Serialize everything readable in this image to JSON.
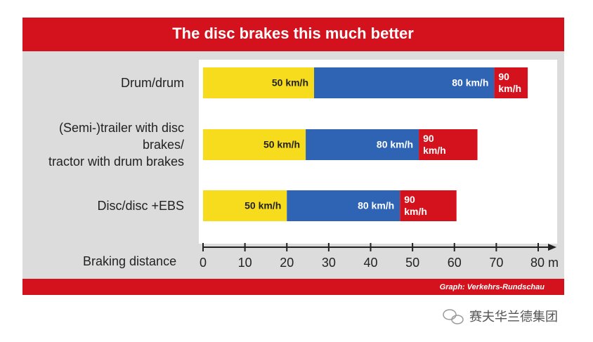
{
  "chart_data": {
    "type": "stacked-bar-horizontal",
    "title": "The disc brakes this much better",
    "categories": [
      "Drum/drum",
      "(Semi-)trailer with disc\nbrakes/\ntractor with drum brakes",
      "Disc/disc +EBS"
    ],
    "series": [
      {
        "name": "50 km/h",
        "color": "#f7dc1e",
        "values": [
          26.5,
          24.5,
          20
        ]
      },
      {
        "name": "80 km/h",
        "color": "#2f64b5",
        "values": [
          43,
          27,
          27
        ]
      },
      {
        "name": "90\nkm/h",
        "color": "#d4121d",
        "values": [
          8,
          14,
          13.5
        ]
      }
    ],
    "xlabel": "Braking distance",
    "xlim": [
      0,
      80
    ],
    "xticks": [
      0,
      10,
      20,
      30,
      40,
      50,
      60,
      70,
      {
        "value": 80,
        "label": "80 m"
      }
    ],
    "source": "Graph: Verkehrs-Rundschau"
  },
  "watermark": "赛夫华兰德集团"
}
